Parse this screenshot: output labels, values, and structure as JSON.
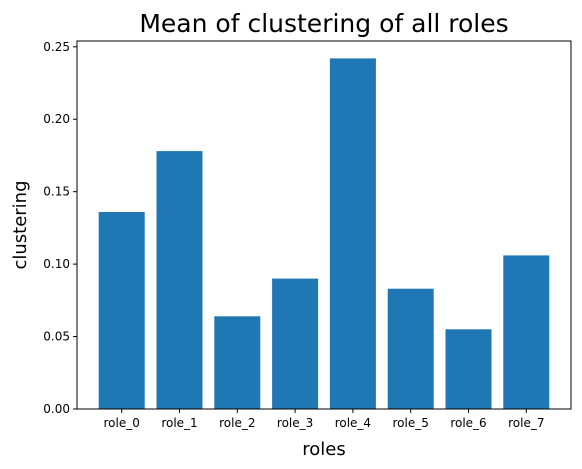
{
  "chart_data": {
    "type": "bar",
    "title": "Mean of clustering of all roles",
    "xlabel": "roles",
    "ylabel": "clustering",
    "categories": [
      "role_0",
      "role_1",
      "role_2",
      "role_3",
      "role_4",
      "role_5",
      "role_6",
      "role_7"
    ],
    "values": [
      0.136,
      0.178,
      0.064,
      0.09,
      0.242,
      0.083,
      0.055,
      0.106
    ],
    "ylim": [
      0,
      0.254
    ],
    "yticks": [
      "0.00",
      "0.05",
      "0.10",
      "0.15",
      "0.20",
      "0.25"
    ],
    "ytick_values": [
      0,
      0.05,
      0.1,
      0.15,
      0.2,
      0.25
    ],
    "bar_color": "#1f77b4",
    "grid": false,
    "legend": "none"
  }
}
